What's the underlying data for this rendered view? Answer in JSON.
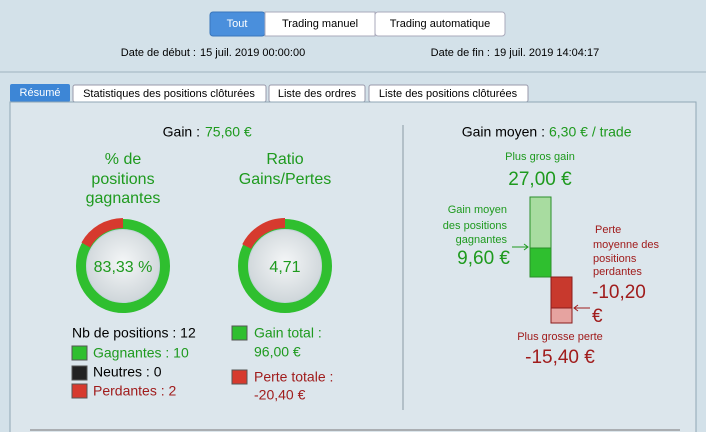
{
  "filters": [
    "Tout",
    "Trading manuel",
    "Trading automatique"
  ],
  "dates": {
    "start_label": "Date de début :",
    "start": "15 juil. 2019 00:00:00",
    "end_label": "Date de fin :",
    "end": "19 juil. 2019 14:04:17"
  },
  "tabs": [
    "Résumé",
    "Statistiques des positions clôturées",
    "Liste des ordres",
    "Liste des positions clôturées"
  ],
  "summary": {
    "gain_label": "Gain :",
    "gain": "75,60 €",
    "win_pct_title": [
      "% de",
      "positions",
      "gagnantes"
    ],
    "win_pct": "83,33 %",
    "ratio_title": [
      "Ratio",
      "Gains/Pertes"
    ],
    "ratio": "4,71",
    "positions_count": "Nb de positions : 12",
    "winners": "Gagnantes : 10",
    "neutral": "Neutres : 0",
    "losers": "Perdantes : 2",
    "total_gain": [
      "Gain total :",
      "96,00 €"
    ],
    "total_loss": [
      "Perte totale :",
      "-20,40 €"
    ]
  },
  "average": {
    "label": "Gain moyen :",
    "value": "6,30 € / trade",
    "max_gain_label": "Plus gros gain",
    "max_gain": "27,00 €",
    "avg_win_label": [
      "Gain moyen",
      "des positions",
      "gagnantes"
    ],
    "avg_win": "9,60 €",
    "avg_loss_label": [
      "Perte",
      "moyenne des",
      "positions",
      "perdantes"
    ],
    "avg_loss": [
      "-10,20",
      "€"
    ],
    "max_loss_label": "Plus grosse perte",
    "max_loss": "-15,40 €"
  }
}
